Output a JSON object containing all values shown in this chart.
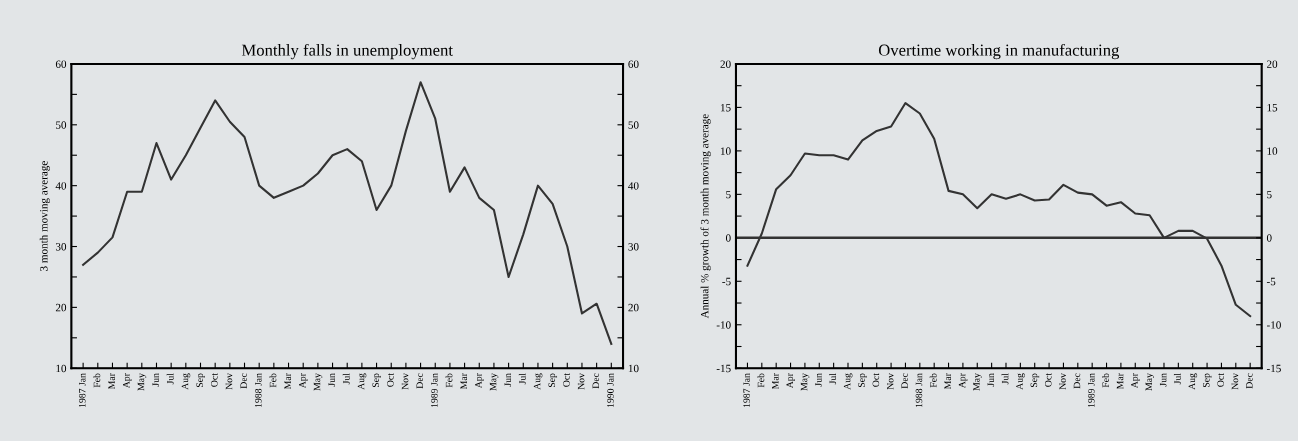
{
  "chart_data": [
    {
      "type": "line",
      "title": "Monthly falls in unemployment",
      "ylabel": "3 month moving average",
      "categories": [
        "1987 Jan",
        "Feb",
        "Mar",
        "Apr",
        "May",
        "Jun",
        "Jul",
        "Aug",
        "Sep",
        "Oct",
        "Nov",
        "Dec",
        "1988 Jan",
        "Feb",
        "Mar",
        "Apr",
        "May",
        "Jun",
        "Jul",
        "Aug",
        "Sep",
        "Oct",
        "Nov",
        "Dec",
        "1989 Jan",
        "Feb",
        "Mar",
        "Apr",
        "May",
        "Jun",
        "Jul",
        "Aug",
        "Sep",
        "Oct",
        "Nov",
        "Dec",
        "1990 Jan"
      ],
      "series": [
        {
          "color": "#333333",
          "values": [
            27,
            29,
            31.5,
            39,
            39,
            47,
            41,
            45,
            49.5,
            54,
            50.5,
            48,
            40,
            38,
            39,
            40,
            42,
            45,
            46,
            44,
            36,
            40,
            49,
            57,
            51,
            39,
            43,
            38,
            36,
            25,
            32,
            40,
            37,
            30,
            19,
            20.6,
            14
          ]
        }
      ],
      "ylim": [
        10,
        60
      ],
      "yticks": [
        10,
        {
          "value": 15,
          "label": null
        },
        20,
        {
          "value": 25,
          "label": null
        },
        30,
        {
          "value": 35,
          "label": null
        },
        40,
        {
          "value": 45,
          "label": null
        },
        50,
        {
          "value": 55,
          "label": null
        },
        60
      ],
      "y2lim": [
        10,
        60
      ],
      "y2ticks": [
        10,
        {
          "value": 15,
          "label": null
        },
        20,
        {
          "value": 25,
          "label": null
        },
        30,
        {
          "value": 35,
          "label": null
        },
        40,
        {
          "value": 45,
          "label": null
        },
        50,
        {
          "value": 55,
          "label": null
        },
        60
      ]
    },
    {
      "type": "line",
      "title": "Overtime working in manufacturing",
      "ylabel": "Annual % growth of 3 month moving average",
      "categories": [
        "1987 Jan",
        "Feb",
        "Mar",
        "Apr",
        "May",
        "Jun",
        "Jul",
        "Aug",
        "Sep",
        "Oct",
        "Nov",
        "Dec",
        "1988 Jan",
        "Feb",
        "Mar",
        "Apr",
        "May",
        "Jun",
        "Jul",
        "Aug",
        "Sep",
        "Oct",
        "Nov",
        "Dec",
        "1989 Jan",
        "Feb",
        "Mar",
        "Apr",
        "May",
        "Jun",
        "Jul",
        "Aug",
        "Sep",
        "Oct",
        "Nov",
        "Dec"
      ],
      "series": [
        {
          "color": "#333333",
          "values": [
            -3.2,
            0.5,
            5.6,
            7.2,
            9.7,
            9.5,
            9.5,
            9.0,
            11.2,
            12.3,
            12.8,
            15.5,
            14.3,
            11.4,
            5.4,
            5.0,
            3.4,
            5.0,
            4.5,
            5.0,
            4.3,
            4.4,
            6.1,
            5.2,
            5.0,
            3.7,
            4.1,
            2.8,
            2.6,
            0,
            0.8,
            0.8,
            -0.1,
            -3.2,
            -7.7,
            -9.0
          ]
        }
      ],
      "ylim": [
        -15,
        20
      ],
      "yticks": [
        -15,
        {
          "value": -12.5,
          "label": null
        },
        -10,
        {
          "value": -7.5,
          "label": null
        },
        -5,
        {
          "value": -2.5,
          "label": null
        },
        0,
        {
          "value": 2.5,
          "label": null
        },
        5,
        {
          "value": 7.5,
          "label": null
        },
        10,
        {
          "value": 12.5,
          "label": null
        },
        15,
        {
          "value": 17.5,
          "label": null
        },
        20
      ],
      "y2lim": [
        -15,
        20
      ],
      "y2ticks": [
        -15,
        {
          "value": -12.5,
          "label": null
        },
        -10,
        {
          "value": -7.5,
          "label": null
        },
        -5,
        {
          "value": -2.5,
          "label": null
        },
        0,
        {
          "value": 2.5,
          "label": null
        },
        5,
        {
          "value": 7.5,
          "label": null
        },
        10,
        {
          "value": 12.5,
          "label": null
        },
        15,
        {
          "value": 17.5,
          "label": null
        },
        20
      ],
      "ref_lines": [
        {
          "axis": "y",
          "value": 0,
          "color": "#333333"
        }
      ]
    }
  ]
}
